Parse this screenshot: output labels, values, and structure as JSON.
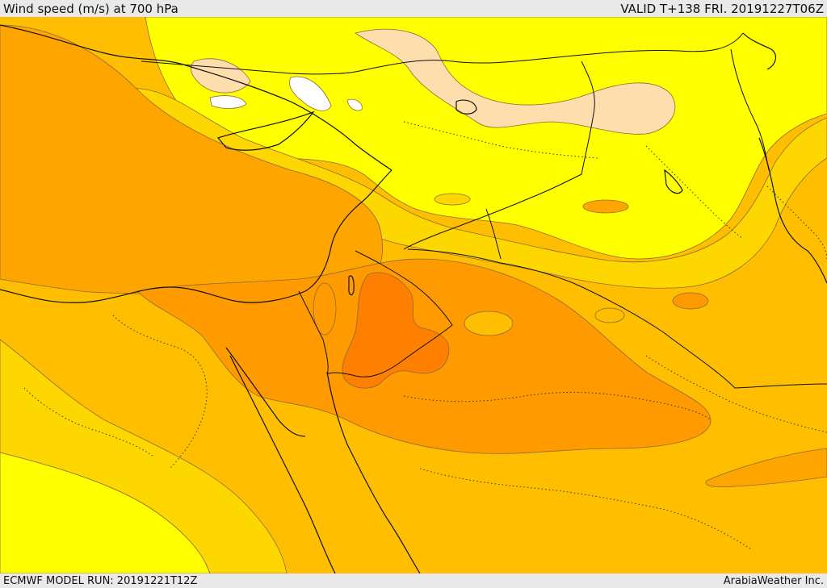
{
  "header": {
    "title": "Wind speed (m/s) at 700 hPa",
    "valid_time": "VALID T+138 FRI. 20191227T06Z"
  },
  "footer": {
    "model_run": "ECMWF MODEL RUN: 20191221T12Z",
    "credit": "ArabiaWeather Inc."
  },
  "map": {
    "variable": "wind speed at 700 hPa",
    "region": "Middle East",
    "palette": [
      "#ffffff",
      "#ffdead",
      "#ffff00",
      "#ffd700",
      "#ffbf00",
      "#ffa500",
      "#ff9a00",
      "#ff8000"
    ]
  }
}
